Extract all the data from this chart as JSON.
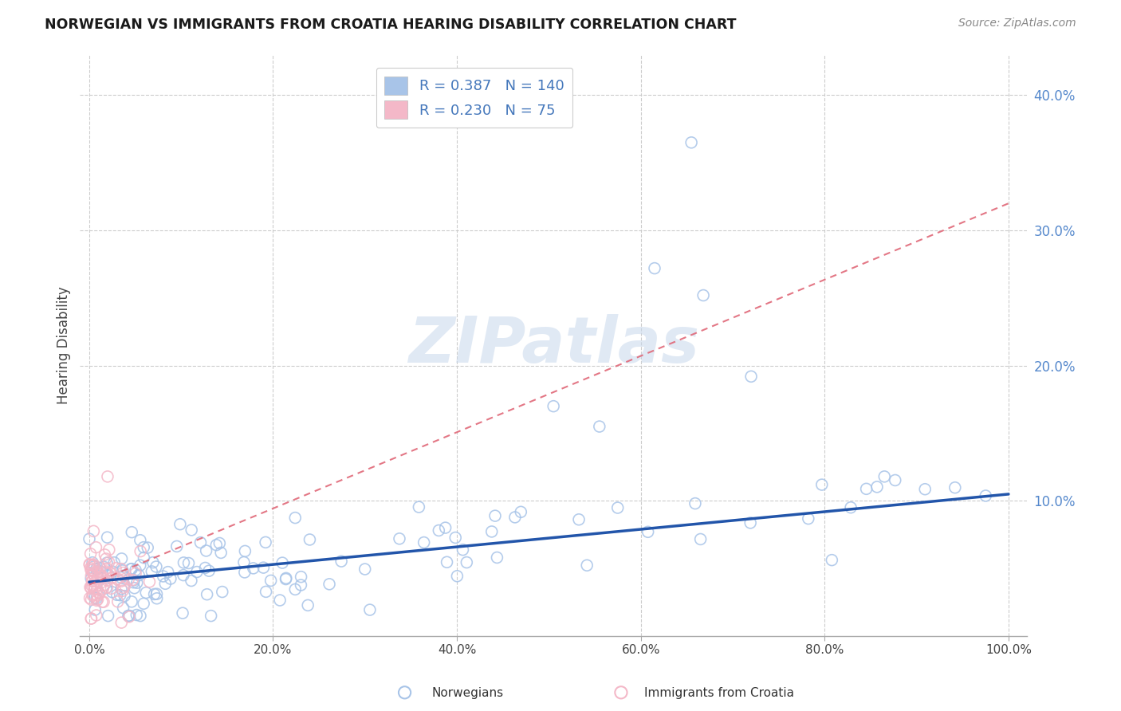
{
  "title": "NORWEGIAN VS IMMIGRANTS FROM CROATIA HEARING DISABILITY CORRELATION CHART",
  "source": "Source: ZipAtlas.com",
  "ylabel": "Hearing Disability",
  "watermark": "ZIPatlas",
  "legend_norwegian": {
    "R": 0.387,
    "N": 140
  },
  "legend_croatia": {
    "R": 0.23,
    "N": 75
  },
  "norwegian_scatter_color": "#a8c4e8",
  "croatia_scatter_color": "#f4b8c8",
  "norwegian_line_color": "#2255aa",
  "croatia_line_color": "#e06878",
  "background_color": "#ffffff",
  "grid_color": "#cccccc",
  "xlim": [
    -0.01,
    1.02
  ],
  "ylim": [
    0.0,
    0.43
  ],
  "xtick_vals": [
    0.0,
    0.2,
    0.4,
    0.6,
    0.8,
    1.0
  ],
  "xtick_labels": [
    "0.0%",
    "20.0%",
    "40.0%",
    "60.0%",
    "80.0%",
    "100.0%"
  ],
  "ytick_vals": [
    0.1,
    0.2,
    0.3,
    0.4
  ],
  "ytick_labels": [
    "10.0%",
    "20.0%",
    "30.0%",
    "40.0%"
  ],
  "nor_line_x0": 0.0,
  "nor_line_y0": 0.04,
  "nor_line_x1": 1.0,
  "nor_line_y1": 0.105,
  "cro_line_x0": 0.0,
  "cro_line_y0": 0.038,
  "cro_line_x1": 1.0,
  "cro_line_y1": 0.32
}
